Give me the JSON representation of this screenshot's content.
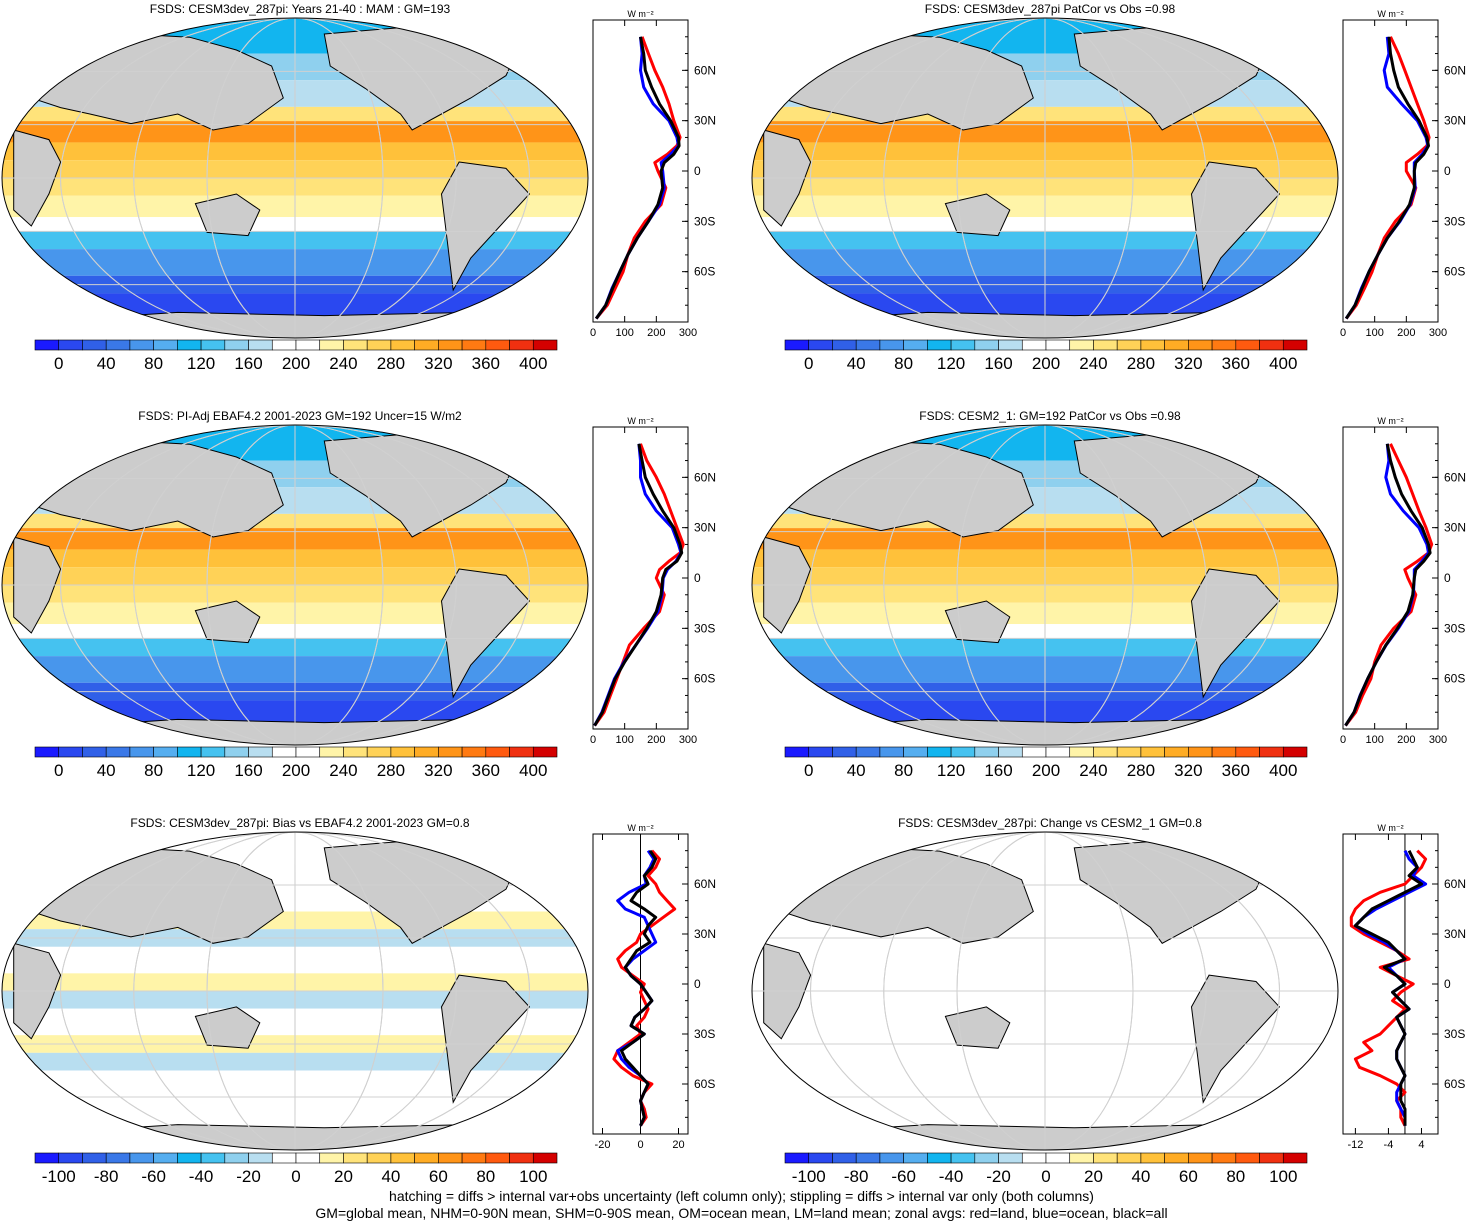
{
  "panels": [
    {
      "id": "p1",
      "title": "FSDS: CESM3dev_287pi: Years 21-40 : MAM : GM=193",
      "colorbar": {
        "labels": [
          "0",
          "40",
          "80",
          "120",
          "160",
          "200",
          "240",
          "280",
          "320",
          "360",
          "400"
        ],
        "min": -20,
        "max": 420
      },
      "zonal": {
        "unit": "W m⁻²",
        "xticks": [
          "0",
          "100",
          "200",
          "300"
        ],
        "xlim": [
          0,
          300
        ],
        "yticks": [
          "60N",
          "30N",
          "0",
          "30S",
          "60S"
        ]
      },
      "chart_data": {
        "type": "line",
        "x_name": "latitude",
        "lat": [
          80,
          70,
          60,
          50,
          40,
          30,
          20,
          15,
          10,
          5,
          0,
          -10,
          -20,
          -30,
          -40,
          -50,
          -60,
          -70,
          -80,
          -88
        ],
        "series": [
          {
            "name": "all",
            "color": "#000000",
            "values": [
              150,
              160,
              165,
              185,
              210,
              245,
              270,
              272,
              255,
              225,
              215,
              220,
              205,
              175,
              140,
              110,
              85,
              62,
              40,
              10
            ]
          },
          {
            "name": "ocean",
            "color": "#0000ff",
            "values": [
              150,
              155,
              150,
              160,
              190,
              240,
              265,
              270,
              245,
              215,
              220,
              225,
              210,
              175,
              140,
              110,
              85,
              60,
              40,
              10
            ]
          },
          {
            "name": "land",
            "color": "#ff0000",
            "values": [
              155,
              175,
              195,
              220,
              240,
              255,
              275,
              265,
              235,
              195,
              205,
              230,
              215,
              165,
              130,
              110,
              95,
              70,
              45,
              10
            ]
          }
        ]
      }
    },
    {
      "id": "p2",
      "title": "FSDS: CESM3dev_287pi PatCor vs Obs =0.98",
      "colorbar": {
        "labels": [
          "0",
          "40",
          "80",
          "120",
          "160",
          "200",
          "240",
          "280",
          "320",
          "360",
          "400"
        ],
        "min": -20,
        "max": 420
      },
      "zonal": {
        "unit": "W m⁻²",
        "xticks": [
          "0",
          "100",
          "200",
          "300"
        ],
        "xlim": [
          0,
          300
        ],
        "yticks": [
          "60N",
          "30N",
          "0",
          "30S",
          "60S"
        ]
      },
      "chart_data": {
        "type": "line",
        "x_name": "latitude",
        "lat": [
          80,
          70,
          60,
          50,
          40,
          30,
          20,
          15,
          10,
          5,
          0,
          -10,
          -20,
          -30,
          -40,
          -50,
          -60,
          -70,
          -80,
          -88
        ],
        "series": [
          {
            "name": "all",
            "color": "#000000",
            "values": [
              145,
              150,
              160,
              175,
              205,
              240,
              265,
              270,
              255,
              230,
              225,
              225,
              210,
              178,
              140,
              110,
              82,
              60,
              38,
              10
            ]
          },
          {
            "name": "ocean",
            "color": "#0000ff",
            "values": [
              140,
              145,
              130,
              140,
              185,
              235,
              262,
              268,
              250,
              225,
              225,
              228,
              212,
              180,
              140,
              110,
              82,
              58,
              38,
              10
            ]
          },
          {
            "name": "land",
            "color": "#ff0000",
            "values": [
              150,
              175,
              195,
              215,
              235,
              255,
              272,
              265,
              235,
              200,
              200,
              230,
              215,
              165,
              130,
              110,
              92,
              68,
              42,
              10
            ]
          }
        ]
      }
    },
    {
      "id": "p3",
      "title": "FSDS: PI-Adj EBAF4.2 2001-2023 GM=192 Uncer=15 W/m2",
      "colorbar": {
        "labels": [
          "0",
          "40",
          "80",
          "120",
          "160",
          "200",
          "240",
          "280",
          "320",
          "360",
          "400"
        ],
        "min": -20,
        "max": 420
      },
      "zonal": {
        "unit": "W m⁻²",
        "xticks": [
          "0",
          "100",
          "200",
          "300"
        ],
        "xlim": [
          0,
          300
        ],
        "yticks": [
          "60N",
          "30N",
          "0",
          "30S",
          "60S"
        ]
      },
      "chart_data": {
        "type": "line",
        "x_name": "latitude",
        "lat": [
          80,
          70,
          60,
          50,
          40,
          30,
          20,
          15,
          10,
          5,
          0,
          -10,
          -20,
          -30,
          -40,
          -50,
          -60,
          -70,
          -80,
          -88
        ],
        "series": [
          {
            "name": "all",
            "color": "#000000",
            "values": [
              145,
              155,
              165,
              190,
              220,
              255,
              275,
              280,
              265,
              230,
              220,
              215,
              200,
              170,
              135,
              100,
              70,
              50,
              30,
              5
            ]
          },
          {
            "name": "ocean",
            "color": "#0000ff",
            "values": [
              145,
              150,
              150,
              165,
              200,
              250,
              270,
              278,
              262,
              235,
              222,
              218,
              205,
              172,
              135,
              98,
              68,
              48,
              28,
              5
            ]
          },
          {
            "name": "land",
            "color": "#ff0000",
            "values": [
              150,
              170,
              200,
              225,
              245,
              265,
              285,
              275,
              240,
              210,
              200,
              225,
              210,
              160,
              115,
              95,
              75,
              55,
              35,
              5
            ]
          }
        ]
      }
    },
    {
      "id": "p4",
      "title": "FSDS: CESM2_1: GM=192 PatCor vs Obs =0.98",
      "colorbar": {
        "labels": [
          "0",
          "40",
          "80",
          "120",
          "160",
          "200",
          "240",
          "280",
          "320",
          "360",
          "400"
        ],
        "min": -20,
        "max": 420
      },
      "zonal": {
        "unit": "W m⁻²",
        "xticks": [
          "0",
          "100",
          "200",
          "300"
        ],
        "xlim": [
          0,
          300
        ],
        "yticks": [
          "60N",
          "30N",
          "0",
          "30S",
          "60S"
        ]
      },
      "chart_data": {
        "type": "line",
        "x_name": "latitude",
        "lat": [
          80,
          70,
          60,
          50,
          40,
          30,
          20,
          15,
          10,
          5,
          0,
          -10,
          -20,
          -30,
          -40,
          -50,
          -60,
          -70,
          -80,
          -88
        ],
        "series": [
          {
            "name": "all",
            "color": "#000000",
            "values": [
              140,
              150,
              165,
              185,
              215,
              250,
              270,
              275,
              255,
              230,
              225,
              220,
              205,
              172,
              135,
              105,
              78,
              55,
              35,
              8
            ]
          },
          {
            "name": "ocean",
            "color": "#0000ff",
            "values": [
              140,
              145,
              135,
              150,
              190,
              240,
              265,
              270,
              250,
              225,
              225,
              222,
              208,
              175,
              136,
              105,
              78,
              54,
              35,
              8
            ]
          },
          {
            "name": "land",
            "color": "#ff0000",
            "values": [
              150,
              175,
              200,
              220,
              240,
              262,
              280,
              270,
              235,
              195,
              205,
              230,
              215,
              160,
              120,
              100,
              88,
              62,
              40,
              8
            ]
          }
        ]
      }
    },
    {
      "id": "p5",
      "title": "FSDS: CESM3dev_287pi: Bias vs EBAF4.2 2001-2023 GM=0.8",
      "colorbar": {
        "labels": [
          "-100",
          "-80",
          "-60",
          "-40",
          "-20",
          "0",
          "20",
          "40",
          "60",
          "80",
          "100"
        ],
        "min": -110,
        "max": 110
      },
      "zonal": {
        "unit": "W m⁻²",
        "xticks": [
          "-20",
          "0",
          "20"
        ],
        "xlim": [
          -25,
          25
        ],
        "yticks": [
          "60N",
          "30N",
          "0",
          "30S",
          "60S"
        ]
      },
      "chart_data": {
        "type": "line",
        "x_name": "latitude",
        "lat": [
          80,
          75,
          70,
          65,
          60,
          55,
          50,
          45,
          40,
          35,
          30,
          25,
          20,
          15,
          10,
          5,
          0,
          -5,
          -10,
          -15,
          -20,
          -25,
          -30,
          -35,
          -40,
          -45,
          -50,
          -55,
          -60,
          -65,
          -70,
          -75,
          -80,
          -85
        ],
        "series": [
          {
            "name": "all",
            "color": "#000000",
            "values": [
              5,
              8,
              6,
              2,
              4,
              -2,
              -5,
              2,
              8,
              4,
              2,
              5,
              -2,
              -5,
              -8,
              -5,
              0,
              3,
              6,
              2,
              -3,
              -5,
              2,
              -4,
              -10,
              -8,
              -4,
              0,
              4,
              2,
              0,
              1,
              2,
              0
            ]
          },
          {
            "name": "ocean",
            "color": "#0000ff",
            "values": [
              4,
              7,
              5,
              2,
              3,
              -6,
              -12,
              -8,
              2,
              4,
              6,
              8,
              2,
              -4,
              -8,
              -5,
              0,
              3,
              6,
              2,
              -3,
              -5,
              2,
              -4,
              -12,
              -10,
              -6,
              0,
              4,
              2,
              0,
              1,
              2,
              0
            ]
          },
          {
            "name": "land",
            "color": "#ff0000",
            "values": [
              6,
              10,
              8,
              4,
              8,
              10,
              14,
              18,
              12,
              6,
              0,
              -2,
              -8,
              -12,
              -10,
              -4,
              2,
              0,
              2,
              4,
              2,
              -2,
              0,
              -6,
              -12,
              -14,
              -10,
              -4,
              6,
              2,
              0,
              2,
              3,
              0
            ]
          }
        ]
      }
    },
    {
      "id": "p6",
      "title": "FSDS: CESM3dev_287pi: Change vs CESM2_1 GM=0.8",
      "colorbar": {
        "labels": [
          "-100",
          "-80",
          "-60",
          "-40",
          "-20",
          "0",
          "20",
          "40",
          "60",
          "80",
          "100"
        ],
        "min": -110,
        "max": 110
      },
      "zonal": {
        "unit": "W m⁻²",
        "xticks": [
          "-12",
          "-4",
          "4"
        ],
        "xlim": [
          -15,
          8
        ],
        "yticks": [
          "60N",
          "30N",
          "0",
          "30S",
          "60S"
        ]
      },
      "chart_data": {
        "type": "line",
        "x_name": "latitude",
        "lat": [
          80,
          75,
          70,
          65,
          60,
          55,
          50,
          45,
          40,
          35,
          30,
          25,
          20,
          15,
          10,
          5,
          0,
          -5,
          -10,
          -15,
          -20,
          -25,
          -30,
          -35,
          -40,
          -45,
          -50,
          -55,
          -60,
          -65,
          -70,
          -75,
          -80,
          -85
        ],
        "series": [
          {
            "name": "all",
            "color": "#000000",
            "values": [
              1,
              2,
              3,
              1,
              4,
              0,
              -4,
              -8,
              -10,
              -12,
              -8,
              -4,
              -2,
              0,
              -5,
              -2,
              0,
              -3,
              -1,
              1,
              -2,
              -1,
              0,
              -1,
              -2,
              -2,
              -1,
              0,
              -1,
              -1,
              -1,
              0,
              0,
              0
            ]
          },
          {
            "name": "ocean",
            "color": "#0000ff",
            "values": [
              0,
              1,
              3,
              2,
              5,
              1,
              -3,
              -7,
              -10,
              -12,
              -9,
              -5,
              -2,
              0,
              -4,
              -2,
              0,
              -3,
              -1,
              1,
              -2,
              -1,
              0,
              -1,
              -2,
              -2,
              -1,
              0,
              -1,
              -2,
              -2,
              -1,
              0,
              0
            ]
          },
          {
            "name": "land",
            "color": "#ff0000",
            "values": [
              3,
              5,
              4,
              2,
              0,
              -6,
              -10,
              -12,
              -13,
              -13,
              -10,
              -6,
              -2,
              1,
              -6,
              -2,
              2,
              -1,
              -3,
              0,
              -2,
              -4,
              -6,
              -10,
              -8,
              -12,
              -11,
              -6,
              -2,
              0,
              -2,
              -1,
              -1,
              0
            ]
          }
        ]
      }
    }
  ],
  "footer": {
    "line1": "hatching = diffs > internal var+obs uncertainty (left column only); stippling = diffs > internal var only (both columns)",
    "line2": "GM=global mean, NHM=0-90N mean, SHM=0-90S mean, OM=ocean mean, LM=land mean; zonal avgs: red=land, blue=ocean, black=all"
  }
}
